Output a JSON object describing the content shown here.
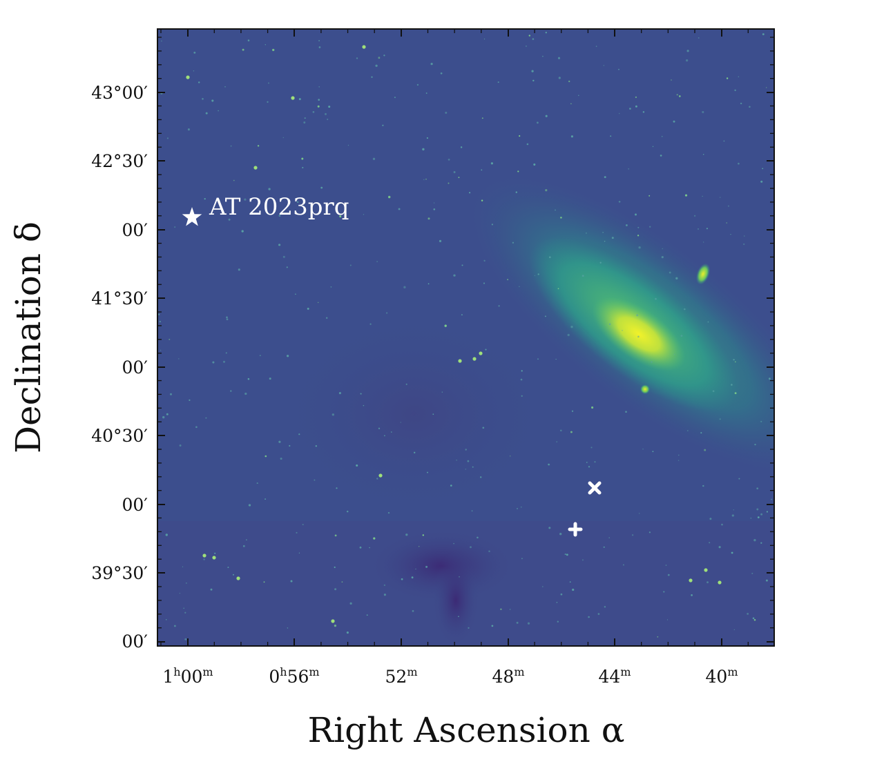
{
  "figure": {
    "xlabel": "Right Ascension α",
    "ylabel": "Declination δ"
  },
  "axes": {
    "dec_ticks": [
      "43°00′",
      "42°30′",
      "00′",
      "41°30′",
      "00′",
      "40°30′",
      "00′",
      "39°30′",
      "00′"
    ],
    "ra_ticks": [
      {
        "main": "1",
        "sup1": "h",
        "min": "00",
        "sup2": "m"
      },
      {
        "main": "0",
        "sup1": "h",
        "min": "56",
        "sup2": "m"
      },
      {
        "main": "",
        "sup1": "",
        "min": "52",
        "sup2": "m"
      },
      {
        "main": "",
        "sup1": "",
        "min": "48",
        "sup2": "m"
      },
      {
        "main": "",
        "sup1": "",
        "min": "44",
        "sup2": "m"
      },
      {
        "main": "",
        "sup1": "",
        "min": "40",
        "sup2": "m"
      }
    ]
  },
  "annotations": {
    "transient_label": "AT 2023prq"
  },
  "colors": {
    "sky_background": "#3b4d8c",
    "galaxy_core": "#e8ef2a",
    "galaxy_halo": "#2d9f88",
    "marker": "#ffffff"
  }
}
